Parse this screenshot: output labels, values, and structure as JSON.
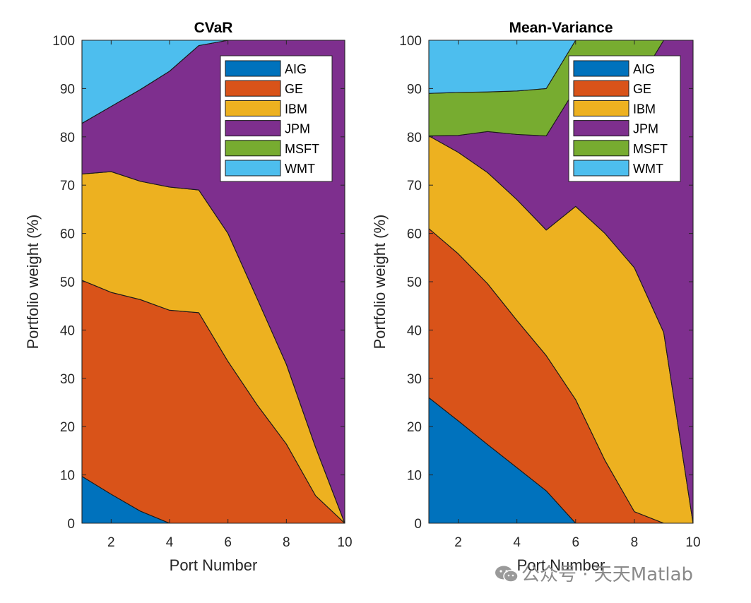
{
  "colors": {
    "AIG": "#0072BD",
    "GE": "#D95319",
    "IBM": "#EDB120",
    "JPM": "#7E2F8E",
    "MSFT": "#77AC30",
    "WMT": "#4DBEEE"
  },
  "watermark": {
    "text": "公众号 · 天天Matlab",
    "icon": "wechat-icon"
  },
  "chart_data": [
    {
      "type": "area",
      "stacked": true,
      "title": "CVaR",
      "xlabel": "Port Number",
      "ylabel": "Portfolio weight (%)",
      "xlim": [
        1,
        10
      ],
      "ylim": [
        0,
        100
      ],
      "xticks": [
        2,
        4,
        6,
        8,
        10
      ],
      "yticks": [
        0,
        10,
        20,
        30,
        40,
        50,
        60,
        70,
        80,
        90,
        100
      ],
      "grid": false,
      "legend_position": "top-right",
      "x": [
        1,
        2,
        3,
        4,
        5,
        6,
        7,
        8,
        9,
        10
      ],
      "series": [
        {
          "name": "AIG",
          "values": [
            9.7,
            6.0,
            2.5,
            0,
            0,
            0,
            0,
            0,
            0,
            0
          ]
        },
        {
          "name": "GE",
          "values": [
            40.6,
            41.8,
            43.8,
            44.1,
            43.6,
            33.5,
            24.5,
            16.4,
            5.7,
            0
          ]
        },
        {
          "name": "IBM",
          "values": [
            22.0,
            25.0,
            24.5,
            25.5,
            25.4,
            26.5,
            22.0,
            16.5,
            10.0,
            0
          ]
        },
        {
          "name": "JPM",
          "values": [
            10.5,
            13.5,
            19.0,
            24.0,
            29.9,
            40.0,
            53.5,
            67.1,
            84.3,
            100
          ]
        },
        {
          "name": "MSFT",
          "values": [
            0,
            0,
            0,
            0,
            0,
            0,
            0,
            0,
            0,
            0
          ]
        },
        {
          "name": "WMT",
          "values": [
            17.2,
            13.7,
            10.2,
            6.4,
            1.1,
            0,
            0,
            0,
            0,
            0
          ]
        }
      ]
    },
    {
      "type": "area",
      "stacked": true,
      "title": "Mean-Variance",
      "xlabel": "Port Number",
      "ylabel": "Portfolio weight (%)",
      "xlim": [
        1,
        10
      ],
      "ylim": [
        0,
        100
      ],
      "xticks": [
        2,
        4,
        6,
        8,
        10
      ],
      "yticks": [
        0,
        10,
        20,
        30,
        40,
        50,
        60,
        70,
        80,
        90,
        100
      ],
      "grid": false,
      "legend_position": "top-right",
      "x": [
        1,
        2,
        3,
        4,
        5,
        6,
        7,
        8,
        9,
        10
      ],
      "series": [
        {
          "name": "AIG",
          "values": [
            26.0,
            21.2,
            16.3,
            11.5,
            6.7,
            0,
            0,
            0,
            0,
            0
          ]
        },
        {
          "name": "GE",
          "values": [
            35.0,
            34.6,
            33.3,
            30.5,
            28.0,
            25.6,
            13.0,
            2.4,
            0,
            0
          ]
        },
        {
          "name": "IBM",
          "values": [
            19.2,
            21.0,
            23.0,
            25.0,
            26.0,
            40.0,
            47.0,
            50.5,
            39.5,
            0
          ]
        },
        {
          "name": "JPM",
          "values": [
            0,
            3.5,
            8.5,
            13.5,
            19.5,
            24.4,
            30.0,
            37.1,
            60.5,
            100
          ]
        },
        {
          "name": "MSFT",
          "values": [
            8.8,
            8.9,
            8.2,
            9.0,
            9.8,
            10.0,
            10.0,
            10.0,
            0,
            0
          ]
        },
        {
          "name": "WMT",
          "values": [
            11.0,
            10.8,
            10.7,
            10.5,
            10.0,
            0,
            0,
            0,
            0,
            0
          ]
        }
      ]
    }
  ]
}
